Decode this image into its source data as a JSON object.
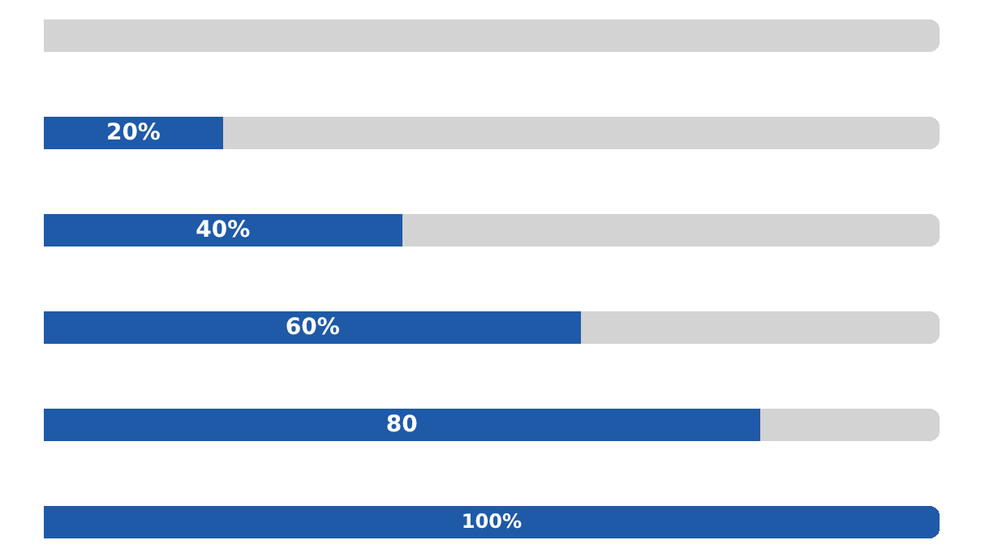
{
  "chart_data": {
    "type": "bar",
    "orientation": "horizontal",
    "stacked": true,
    "categories": [
      null,
      null,
      null,
      null,
      null,
      null
    ],
    "xlim": [
      0,
      100
    ],
    "series": [
      {
        "color": "#1f5aa8",
        "values": [
          0,
          20,
          40,
          60,
          80,
          100
        ],
        "value_labels": [
          null,
          "20%",
          "40%",
          "60%",
          "80",
          "100%"
        ]
      },
      {
        "color": "#d3d3d3",
        "values": [
          100,
          80,
          60,
          40,
          20,
          0
        ]
      }
    ]
  }
}
